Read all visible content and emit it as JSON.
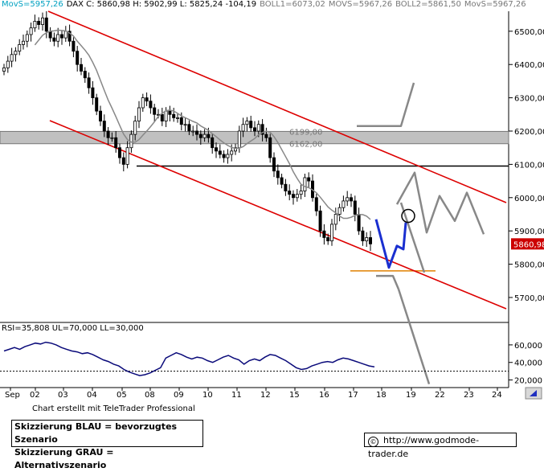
{
  "header": {
    "movs_left": "MovS=5957,26",
    "instrument": "DAX C: 5860,98 H: 5902,99 L: 5825,24 -104,19",
    "boll1": "BOLL1=6073,02",
    "movs_mid": "MOVS=5967,26",
    "boll2": "BOLL2=5861,50",
    "movs_right": "MovS=5967,26"
  },
  "colors": {
    "movs_left": "#00a0c0",
    "candle": "#000000",
    "ma": "#888888",
    "channel": "#dd0000",
    "support": "#000000",
    "zone_fill": "#c0c0c0",
    "blue_scenario": "#1a2fd0",
    "gray_scenario": "#888888",
    "orange_line": "#e08000",
    "rsi_line": "#0a0a7a",
    "price_tag_bg": "#cc0000"
  },
  "chart_data": [
    {
      "type": "candlestick",
      "title": "DAX",
      "x_tick_labels": [
        "Sep",
        "02",
        "03",
        "04",
        "05",
        "08",
        "09",
        "10",
        "11",
        "12",
        "15",
        "16",
        "17",
        "18",
        "19",
        "22",
        "23",
        "24"
      ],
      "y_ticks": [
        5700,
        5800,
        5900,
        6000,
        6100,
        6200,
        6300,
        6400,
        6500
      ],
      "y_tick_labels": [
        "5700,00",
        "5800,00",
        "5900,00",
        "6000,00",
        "6100,00",
        "6200,00",
        "6300,00",
        "6400,00",
        "6500,00"
      ],
      "ylim": [
        5625,
        6560
      ],
      "grid": false,
      "last_price_label": "5860,98",
      "annotations": [
        {
          "text": "6199,00",
          "value": 6199
        },
        {
          "text": "6162,00",
          "value": 6162
        }
      ],
      "resistance_zone": [
        6162,
        6199
      ],
      "support_line": 6095,
      "orange_line": 5780,
      "closes": [
        6390,
        6410,
        6430,
        6440,
        6460,
        6470,
        6490,
        6510,
        6530,
        6520,
        6540,
        6500,
        6480,
        6470,
        6490,
        6480,
        6500,
        6470,
        6440,
        6400,
        6380,
        6360,
        6330,
        6300,
        6260,
        6230,
        6200,
        6180,
        6180,
        6150,
        6120,
        6100,
        6150,
        6190,
        6230,
        6270,
        6300,
        6290,
        6270,
        6250,
        6250,
        6230,
        6260,
        6250,
        6240,
        6240,
        6220,
        6220,
        6200,
        6200,
        6190,
        6180,
        6190,
        6180,
        6150,
        6140,
        6130,
        6120,
        6130,
        6140,
        6150,
        6200,
        6220,
        6230,
        6210,
        6200,
        6220,
        6190,
        6180,
        6120,
        6080,
        6060,
        6040,
        6020,
        6010,
        6000,
        6010,
        6020,
        6060,
        6050,
        6000,
        5960,
        5900,
        5880,
        5870,
        5920,
        5950,
        5970,
        5990,
        6000,
        5990,
        5950,
        5900,
        5870,
        5880,
        5861
      ]
    },
    {
      "type": "line",
      "title": "RSI=35,808 UL=70,000 LL=30,000",
      "y_ticks": [
        20,
        40,
        60
      ],
      "y_tick_labels": [
        "20,000",
        "40,000",
        "60,000"
      ],
      "ylim": [
        15,
        70
      ],
      "series": [
        {
          "values": [
            53,
            55,
            57,
            55,
            58,
            60,
            62,
            61,
            63,
            62,
            60,
            57,
            55,
            53,
            52,
            50,
            51,
            49,
            46,
            43,
            41,
            38,
            36,
            32,
            29,
            27,
            25,
            26,
            28,
            31,
            34,
            45,
            48,
            51,
            49,
            46,
            44,
            46,
            45,
            42,
            40,
            43,
            46,
            48,
            45,
            43,
            38,
            42,
            44,
            42,
            46,
            49,
            48,
            45,
            42,
            38,
            34,
            32,
            33,
            36,
            38,
            40,
            41,
            40,
            43,
            45,
            44,
            42,
            40,
            38,
            36,
            35
          ]
        }
      ]
    }
  ],
  "x_axis_labels": [
    "Sep",
    "02",
    "03",
    "04",
    "05",
    "08",
    "09",
    "10",
    "11",
    "12",
    "15",
    "16",
    "17",
    "18",
    "19",
    "22",
    "23",
    "24"
  ],
  "rsi_header": "RSI=35,808 UL=70,000 LL=30,000",
  "footer": {
    "credit": "Chart erstellt mit TeleTrader Professional",
    "legend_blue": "Skizzierung BLAU = bevorzugtes Szenario",
    "legend_gray": "Skizzierung GRAU = Alternativszenario",
    "copyright_symbol": "©",
    "url": "http://www.godmode-trader.de"
  }
}
